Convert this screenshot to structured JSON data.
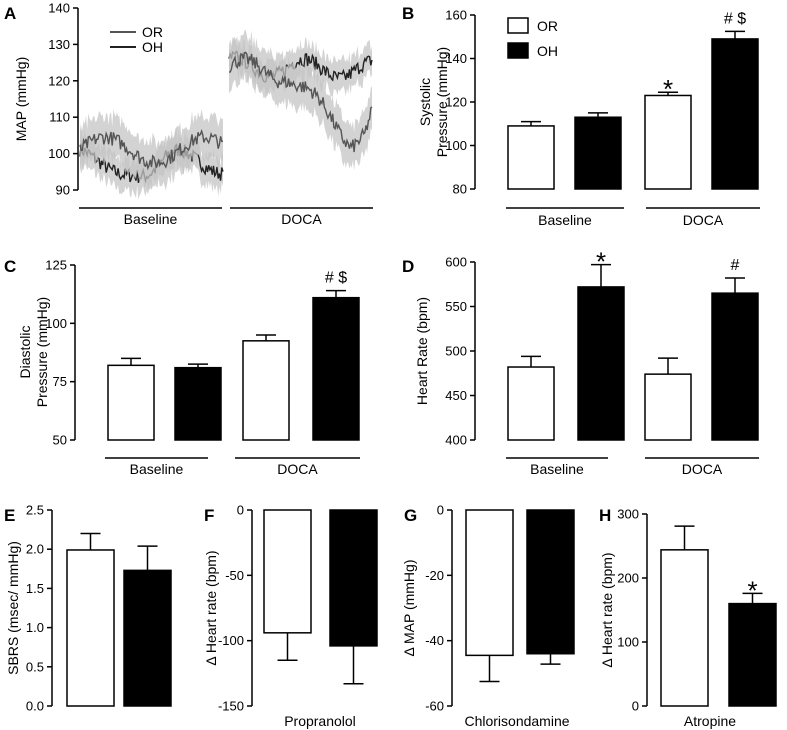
{
  "legend": {
    "open_label": "OR",
    "filled_label": "OH"
  },
  "colors": {
    "filled": "#000000",
    "open": "#ffffff",
    "trace_or": "#555555",
    "trace_oh": "#222222",
    "band": "#c4c4c4"
  },
  "chart_data": [
    {
      "id": "A",
      "type": "line",
      "ylabel": "MAP (mmHg)",
      "ylim": [
        90,
        140
      ],
      "yticks": [
        90,
        100,
        110,
        120,
        130,
        140
      ],
      "groups": [
        "Baseline",
        "DOCA"
      ],
      "series": [
        {
          "name": "OR",
          "baseline_mean": 101,
          "doca_profile": [
            {
              "t": 0,
              "v": 124
            },
            {
              "t": 0.4,
              "v": 122
            },
            {
              "t": 0.6,
              "v": 114
            },
            {
              "t": 0.85,
              "v": 104
            },
            {
              "t": 0.95,
              "v": 106
            },
            {
              "t": 1,
              "v": 111
            }
          ]
        },
        {
          "name": "OH",
          "baseline_mean": 98,
          "doca_profile": [
            {
              "t": 0,
              "v": 124
            },
            {
              "t": 1,
              "v": 123
            }
          ]
        }
      ]
    },
    {
      "id": "B",
      "type": "bar",
      "ylabel_lines": [
        "Systolic",
        "Pressure (mmHg)"
      ],
      "ylim": [
        80,
        160
      ],
      "yticks": [
        80,
        100,
        120,
        140,
        160
      ],
      "categories": [
        "Baseline",
        "DOCA"
      ],
      "series": [
        {
          "name": "OR",
          "values": [
            109,
            123
          ],
          "errors": [
            2,
            1.5
          ]
        },
        {
          "name": "OH",
          "values": [
            113,
            149
          ],
          "errors": [
            2,
            3.5
          ]
        }
      ],
      "annotations": [
        {
          "category": 1,
          "series": 0,
          "text": "*"
        },
        {
          "category": 1,
          "series": 1,
          "text": "# $"
        }
      ]
    },
    {
      "id": "C",
      "type": "bar",
      "ylabel_lines": [
        "Diastolic",
        "Pressure (mmHg)"
      ],
      "ylim": [
        50,
        125
      ],
      "yticks": [
        50,
        75,
        100,
        125
      ],
      "categories": [
        "Baseline",
        "DOCA"
      ],
      "series": [
        {
          "name": "OR",
          "values": [
            82,
            92.5
          ],
          "errors": [
            3,
            2.5
          ]
        },
        {
          "name": "OH",
          "values": [
            81,
            111
          ],
          "errors": [
            1.5,
            3
          ]
        }
      ],
      "annotations": [
        {
          "category": 1,
          "series": 1,
          "text": "# $"
        }
      ]
    },
    {
      "id": "D",
      "type": "bar",
      "ylabel": "Heart Rate (bpm)",
      "ylim": [
        400,
        600
      ],
      "yticks": [
        400,
        450,
        500,
        550,
        600
      ],
      "categories": [
        "Baseline",
        "DOCA"
      ],
      "series": [
        {
          "name": "OR",
          "values": [
            482,
            474
          ],
          "errors": [
            12,
            18
          ]
        },
        {
          "name": "OH",
          "values": [
            572,
            565
          ],
          "errors": [
            25,
            17
          ]
        }
      ],
      "annotations": [
        {
          "category": 0,
          "series": 1,
          "text": "*"
        },
        {
          "category": 1,
          "series": 1,
          "text": "#"
        }
      ]
    },
    {
      "id": "E",
      "type": "bar",
      "ylabel": "SBRS (msec/ mmHg)",
      "ylim": [
        0,
        2.5
      ],
      "yticks": [
        "0.0",
        "0.5",
        "1.0",
        "1.5",
        "2.0",
        "2.5"
      ],
      "categories": [
        ""
      ],
      "series": [
        {
          "name": "OR",
          "values": [
            1.99
          ],
          "errors": [
            0.21
          ]
        },
        {
          "name": "OH",
          "values": [
            1.73
          ],
          "errors": [
            0.31
          ]
        }
      ],
      "annotations": []
    },
    {
      "id": "F",
      "type": "bar",
      "ylabel": "Δ Heart rate (bpm)",
      "xlabel": "Propranolol",
      "ylim": [
        -150,
        0
      ],
      "yticks": [
        -150,
        -100,
        -50,
        0
      ],
      "categories": [
        ""
      ],
      "series": [
        {
          "name": "OR",
          "values": [
            -94
          ],
          "errors": [
            21
          ]
        },
        {
          "name": "OH",
          "values": [
            -104
          ],
          "errors": [
            29
          ]
        }
      ],
      "annotations": []
    },
    {
      "id": "G",
      "type": "bar",
      "ylabel": "Δ MAP (mmHg)",
      "xlabel": "Chlorisondamine",
      "ylim": [
        -60,
        0
      ],
      "yticks": [
        -60,
        -40,
        -20,
        0
      ],
      "categories": [
        ""
      ],
      "series": [
        {
          "name": "OR",
          "values": [
            -44.5
          ],
          "errors": [
            8
          ]
        },
        {
          "name": "OH",
          "values": [
            -44
          ],
          "errors": [
            3.2
          ]
        }
      ],
      "annotations": []
    },
    {
      "id": "H",
      "type": "bar",
      "ylabel": "Δ Heart rate (bpm)",
      "xlabel": "Atropine",
      "ylim": [
        0,
        300
      ],
      "yticks": [
        0,
        100,
        200,
        300
      ],
      "categories": [
        ""
      ],
      "series": [
        {
          "name": "OR",
          "values": [
            244
          ],
          "errors": [
            37
          ]
        },
        {
          "name": "OH",
          "values": [
            160
          ],
          "errors": [
            16
          ]
        }
      ],
      "annotations": [
        {
          "category": 0,
          "series": 1,
          "text": "*"
        }
      ]
    }
  ]
}
